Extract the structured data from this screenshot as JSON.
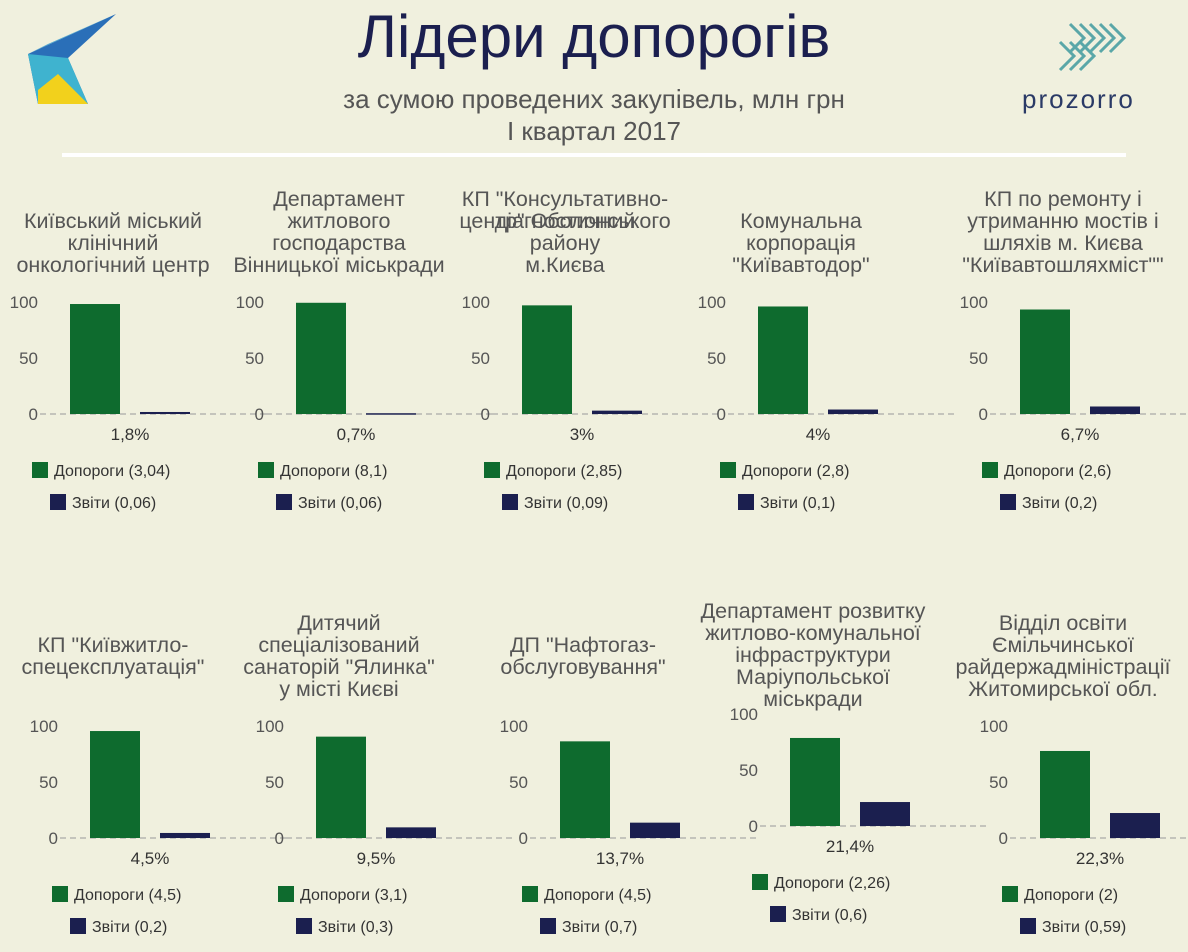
{
  "header": {
    "title": "Лідери допорогів",
    "subtitle": "за сумою проведених закупівель, млн грн",
    "period": "I квартал 2017",
    "brand": "prozorro"
  },
  "colors": {
    "thresholds": "#0e6b2e",
    "reports": "#1b1f4f",
    "background": "#f0f0de"
  },
  "chart_data": [
    {
      "type": "bar",
      "title": "Київський міський клінічний онкологічний центр",
      "categories": [
        "Допороги",
        "Звіти"
      ],
      "values": [
        98.2,
        1.8
      ],
      "ylim": [
        0,
        100
      ],
      "yticks": [
        0,
        50,
        100
      ],
      "pct_label": "1,8%",
      "legend": [
        "Допороги (3,04)",
        "Звіти (0,06)"
      ]
    },
    {
      "type": "bar",
      "title": "Департамент житлового господарства Вінницької міськради",
      "categories": [
        "Допороги",
        "Звіти"
      ],
      "values": [
        99.3,
        0.7
      ],
      "ylim": [
        0,
        100
      ],
      "yticks": [
        0,
        50,
        100
      ],
      "pct_label": "0,7%",
      "legend": [
        "Допороги (8,1)",
        "Звіти (0,06)"
      ]
    },
    {
      "type": "bar",
      "title": "КП \"Консультативно-діагностичний центр\" Оболонського району м.Києва",
      "categories": [
        "Допороги",
        "Звіти"
      ],
      "values": [
        97,
        3
      ],
      "ylim": [
        0,
        100
      ],
      "yticks": [
        0,
        50,
        100
      ],
      "pct_label": "3%",
      "legend": [
        "Допороги (2,85)",
        "Звіти (0,09)"
      ]
    },
    {
      "type": "bar",
      "title": "Комунальна корпорація \"Київавтодор\"",
      "categories": [
        "Допороги",
        "Звіти"
      ],
      "values": [
        96,
        4
      ],
      "ylim": [
        0,
        100
      ],
      "yticks": [
        0,
        50,
        100
      ],
      "pct_label": "4%",
      "legend": [
        "Допороги (2,8)",
        "Звіти (0,1)"
      ]
    },
    {
      "type": "bar",
      "title": "КП по ремонту і утриманню мостів і шляхів м. Києва \"Київавтошляхміст\"\"",
      "categories": [
        "Допороги",
        "Звіти"
      ],
      "values": [
        93.3,
        6.7
      ],
      "ylim": [
        0,
        100
      ],
      "yticks": [
        0,
        50,
        100
      ],
      "pct_label": "6,7%",
      "legend": [
        "Допороги (2,6)",
        "Звіти (0,2)"
      ]
    },
    {
      "type": "bar",
      "title": "КП \"Київжитло-спецексплуатація\"",
      "categories": [
        "Допороги",
        "Звіти"
      ],
      "values": [
        95.5,
        4.5
      ],
      "ylim": [
        0,
        100
      ],
      "yticks": [
        0,
        50,
        100
      ],
      "pct_label": "4,5%",
      "legend": [
        "Допороги (4,5)",
        "Звіти (0,2)"
      ]
    },
    {
      "type": "bar",
      "title": "Дитячий спеціалізований санаторій \"Ялинка\" у місті Києві",
      "categories": [
        "Допороги",
        "Звіти"
      ],
      "values": [
        90.5,
        9.5
      ],
      "ylim": [
        0,
        100
      ],
      "yticks": [
        0,
        50,
        100
      ],
      "pct_label": "9,5%",
      "legend": [
        "Допороги (3,1)",
        "Звіти (0,3)"
      ]
    },
    {
      "type": "bar",
      "title": "ДП \"Нафтогаз-обслуговування\"",
      "categories": [
        "Допороги",
        "Звіти"
      ],
      "values": [
        86.3,
        13.7
      ],
      "ylim": [
        0,
        100
      ],
      "yticks": [
        0,
        50,
        100
      ],
      "pct_label": "13,7%",
      "legend": [
        "Допороги (4,5)",
        "Звіти (0,7)"
      ]
    },
    {
      "type": "bar",
      "title": "Департамент розвитку житлово-комунальної інфраструктури Маріупольської міськради",
      "categories": [
        "Допороги",
        "Звіти"
      ],
      "values": [
        78.6,
        21.4
      ],
      "ylim": [
        0,
        100
      ],
      "yticks": [
        0,
        50,
        100
      ],
      "pct_label": "21,4%",
      "legend": [
        "Допороги (2,26)",
        "Звіти (0,6)"
      ]
    },
    {
      "type": "bar",
      "title": "Відділ освіти Ємільчинської райдержадміністрації Житомирської обл.",
      "categories": [
        "Допороги",
        "Звіти"
      ],
      "values": [
        77.7,
        22.3
      ],
      "ylim": [
        0,
        100
      ],
      "yticks": [
        0,
        50,
        100
      ],
      "pct_label": "22,3%",
      "legend": [
        "Допороги (2)",
        "Звіти (0,59)"
      ]
    }
  ]
}
